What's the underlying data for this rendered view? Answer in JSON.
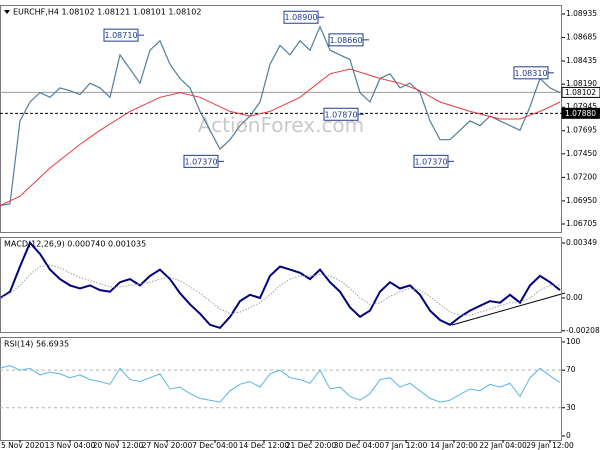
{
  "chart_data": [
    {
      "type": "line",
      "title": "EURCHF,H4  1.08102 1.08121 1.08101 1.08102",
      "watermark": "ActionForex.com",
      "xlim": [
        0,
        56.2
      ],
      "xticks": [
        {
          "value": 2,
          "label": "5 Nov 2020"
        },
        {
          "value": 7,
          "label": "13 Nov 04:00"
        },
        {
          "value": 11.8,
          "label": "20 Nov 12:00"
        },
        {
          "value": 16.7,
          "label": "27 Nov 20:00"
        },
        {
          "value": 21.5,
          "label": "7 Dec 04:00"
        },
        {
          "value": 26.4,
          "label": "14 Dec 12:00"
        },
        {
          "value": 31.1,
          "label": "21 Dec 20:00"
        },
        {
          "value": 35.9,
          "label": "30 Dec 04:00"
        },
        {
          "value": 40.6,
          "label": "7 Jan 12:00"
        },
        {
          "value": 45.4,
          "label": "14 Jan 20:00"
        },
        {
          "value": 50.3,
          "label": "22 Jan 04:00"
        },
        {
          "value": 55,
          "label": "29 Jan 12:00"
        }
      ],
      "ylim": [
        1.0662,
        1.0903
      ],
      "yticks": [
        1.06705,
        {
          "value": 1.0695,
          "label": "1.06950"
        },
        {
          "value": 1.072,
          "label": "1.07200"
        },
        {
          "value": 1.0745,
          "label": "1.07450"
        },
        1.07695,
        1.07945,
        {
          "value": 1.0819,
          "label": "1.08190"
        },
        1.08435,
        1.08685,
        1.08935
      ],
      "series": [
        {
          "color": "#4f7f9a",
          "width": 1.2,
          "x": [
            0,
            1,
            2,
            3,
            4,
            5,
            6,
            7,
            8,
            9,
            10,
            11,
            12,
            13,
            14,
            15,
            16,
            17,
            18,
            19,
            20,
            21,
            22,
            23,
            24,
            25,
            26,
            27,
            28,
            29,
            30,
            31,
            32,
            33,
            34,
            35,
            36,
            37,
            38,
            39,
            40,
            41,
            42,
            43,
            44,
            45,
            46,
            47,
            48,
            49,
            50,
            51,
            52,
            53,
            54,
            55,
            56
          ],
          "values": [
            1.069,
            1.0692,
            1.078,
            1.08,
            1.081,
            1.0805,
            1.0815,
            1.0812,
            1.0808,
            1.082,
            1.0815,
            1.0805,
            1.085,
            1.0835,
            1.082,
            1.0855,
            1.0865,
            1.084,
            1.0825,
            1.0815,
            1.079,
            1.077,
            1.075,
            1.076,
            1.0775,
            1.0785,
            1.08,
            1.084,
            1.086,
            1.085,
            1.0865,
            1.0855,
            1.088,
            1.0855,
            1.085,
            1.0845,
            1.081,
            1.08,
            1.0825,
            1.083,
            1.0815,
            1.082,
            1.081,
            1.078,
            1.076,
            1.076,
            1.077,
            1.078,
            1.0775,
            1.0785,
            1.078,
            1.0775,
            1.077,
            1.0795,
            1.0825,
            1.0815,
            1.081
          ]
        },
        {
          "color": "#e8383d",
          "width": 1,
          "x": [
            0,
            2,
            5,
            8,
            10,
            13,
            16,
            18,
            20,
            23,
            25,
            27,
            30,
            33,
            35,
            38,
            40,
            42,
            44,
            47,
            50,
            52,
            54,
            56
          ],
          "values": [
            1.069,
            1.07,
            1.073,
            1.0755,
            1.077,
            1.079,
            1.0805,
            1.081,
            1.0805,
            1.079,
            1.0785,
            1.079,
            1.0805,
            1.083,
            1.0835,
            1.0825,
            1.082,
            1.0812,
            1.08,
            1.079,
            1.0782,
            1.0782,
            1.079,
            1.08
          ]
        }
      ],
      "annotations": [
        {
          "x": 14,
          "value": 1.0871,
          "label": "1.08710"
        },
        {
          "x": 22,
          "value": 1.0737,
          "label": "1.07370"
        },
        {
          "x": 32,
          "value": 1.089,
          "label": "1.08900"
        },
        {
          "x": 36.5,
          "value": 1.0866,
          "label": "1.08660"
        },
        {
          "x": 36,
          "value": 1.0787,
          "label": "1.07870"
        },
        {
          "x": 45,
          "value": 1.0737,
          "label": "1.07370"
        },
        {
          "x": 55,
          "value": 1.0831,
          "label": "1.08310"
        }
      ],
      "hlines": [
        {
          "value": 1.08102,
          "label": "1.08102",
          "color": "#9a9a9a",
          "style": "solid"
        },
        {
          "value": 1.0788,
          "label": "1.07880",
          "color": "#000000",
          "style": "dashed"
        }
      ]
    },
    {
      "type": "line",
      "title": "MACD(12,26,9) 0.000740 0.001035",
      "ylim": [
        -0.00216,
        0.00387
      ],
      "yticks": [
        -0.002083,
        {
          "value": 0,
          "label": "0.00"
        },
        0.00349
      ],
      "series": [
        {
          "color": "#00007f",
          "width": 2,
          "x": [
            0,
            1,
            2,
            3,
            4,
            5,
            6,
            7,
            8,
            9,
            10,
            11,
            12,
            13,
            14,
            15,
            16,
            17,
            18,
            19,
            20,
            21,
            22,
            23,
            24,
            25,
            26,
            27,
            28,
            29,
            30,
            31,
            32,
            33,
            34,
            35,
            36,
            37,
            38,
            39,
            40,
            41,
            42,
            43,
            44,
            45,
            46,
            47,
            48,
            49,
            50,
            51,
            52,
            53,
            54,
            55,
            56
          ],
          "values": [
            0,
            0.0004,
            0.002,
            0.0035,
            0.0028,
            0.0018,
            0.0012,
            0.0008,
            0.0006,
            0.0008,
            0.0005,
            0.0004,
            0.001,
            0.0012,
            0.0008,
            0.0014,
            0.0018,
            0.0012,
            0.0003,
            -0.0004,
            -0.001,
            -0.0017,
            -0.0019,
            -0.0012,
            -0.0002,
            0.0002,
            0,
            0.0014,
            0.002,
            0.0018,
            0.0016,
            0.0012,
            0.0018,
            0.001,
            0.0004,
            -0.0006,
            -0.0012,
            -0.0008,
            0.0004,
            0.001,
            0.0006,
            0.0008,
            0.0002,
            -0.0008,
            -0.0014,
            -0.0017,
            -0.0012,
            -0.0008,
            -0.0005,
            -0.0002,
            -0.0003,
            0.0002,
            -0.0003,
            0.0008,
            0.0014,
            0.001,
            0.0005
          ]
        },
        {
          "color": "#a0a0a0",
          "width": 1,
          "style": "dotted",
          "x": [
            0,
            1,
            2,
            3,
            4,
            5,
            6,
            7,
            8,
            9,
            10,
            11,
            12,
            13,
            14,
            15,
            16,
            17,
            18,
            19,
            20,
            21,
            22,
            23,
            24,
            25,
            26,
            27,
            28,
            29,
            30,
            31,
            32,
            33,
            34,
            35,
            36,
            37,
            38,
            39,
            40,
            41,
            42,
            43,
            44,
            45,
            46,
            47,
            48,
            49,
            50,
            51,
            52,
            53,
            54,
            55,
            56
          ],
          "values": [
            0,
            0.0003,
            0.0008,
            0.0015,
            0.002,
            0.0021,
            0.0019,
            0.0016,
            0.0013,
            0.0011,
            0.0009,
            0.0007,
            0.0007,
            0.0008,
            0.0009,
            0.001,
            0.0012,
            0.0013,
            0.0011,
            0.0007,
            0.0003,
            -0.0002,
            -0.0007,
            -0.001,
            -0.0009,
            -0.0006,
            -0.0003,
            0.0002,
            0.0008,
            0.0012,
            0.0014,
            0.0014,
            0.0015,
            0.0014,
            0.0011,
            0.0006,
            0,
            -0.0004,
            -0.0003,
            0.0001,
            0.0004,
            0.0006,
            0.0005,
            0.0001,
            -0.0004,
            -0.0009,
            -0.0011,
            -0.0011,
            -0.0009,
            -0.0007,
            -0.0005,
            -0.0003,
            -0.0003,
            0,
            0.0005,
            0.0008,
            0.0008
          ]
        }
      ]
    },
    {
      "type": "line",
      "title": "RSI(14) 56.6935",
      "ylim": [
        -4.3,
        105.3
      ],
      "yticks": [
        0,
        30,
        70,
        100
      ],
      "grid_levels": [
        30,
        70
      ],
      "series": [
        {
          "color": "#5db3e8",
          "width": 1,
          "x": [
            0,
            1,
            2,
            3,
            4,
            5,
            6,
            7,
            8,
            9,
            10,
            11,
            12,
            13,
            14,
            15,
            16,
            17,
            18,
            19,
            20,
            21,
            22,
            23,
            24,
            25,
            26,
            27,
            28,
            29,
            30,
            31,
            32,
            33,
            34,
            35,
            36,
            37,
            38,
            39,
            40,
            41,
            42,
            43,
            44,
            45,
            46,
            47,
            48,
            49,
            50,
            51,
            52,
            53,
            54,
            55,
            56
          ],
          "values": [
            72,
            75,
            70,
            72,
            65,
            68,
            66,
            62,
            65,
            60,
            58,
            55,
            72,
            60,
            58,
            62,
            66,
            50,
            52,
            45,
            40,
            38,
            36,
            48,
            55,
            58,
            52,
            66,
            70,
            62,
            60,
            56,
            70,
            50,
            52,
            42,
            38,
            45,
            60,
            62,
            52,
            56,
            48,
            40,
            36,
            38,
            44,
            50,
            48,
            55,
            52,
            56,
            42,
            62,
            72,
            64,
            57
          ]
        }
      ]
    }
  ]
}
